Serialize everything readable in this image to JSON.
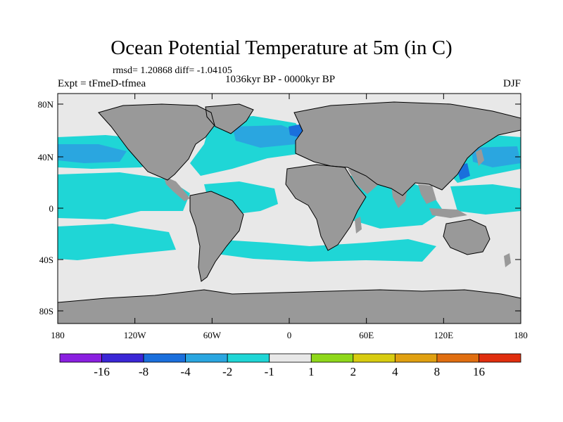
{
  "title": "Ocean Potential Temperature at 5m (in C)",
  "stats": "rmsd= 1.20868 diff= -1.04105",
  "experiment": "Expt = tFmeD-tfmea",
  "period": "1036kyr BP - 0000kyr BP",
  "season": "DJF",
  "lat_labels": [
    "80N",
    "40N",
    "0",
    "40S",
    "80S"
  ],
  "lon_labels": [
    "180",
    "120W",
    "60W",
    "0",
    "60E",
    "120E",
    "180"
  ],
  "colorbar": {
    "colors": [
      "#8a1fe0",
      "#3a26d6",
      "#1a6fdc",
      "#2aa6e0",
      "#1fd6d6",
      "#e8e8e8",
      "#8fd81a",
      "#d8cc10",
      "#e0a010",
      "#e06e10",
      "#e02e0e"
    ],
    "labels": [
      "-16",
      "-8",
      "-4",
      "-2",
      "-1",
      "1",
      "2",
      "4",
      "8",
      "16"
    ]
  },
  "map_colors": {
    "land": "#999999",
    "ocean_neutral": "#e8e8e8",
    "cool_1": "#1fd6d6",
    "cool_2": "#2aa6e0",
    "cool_3": "#1a6fdc"
  }
}
